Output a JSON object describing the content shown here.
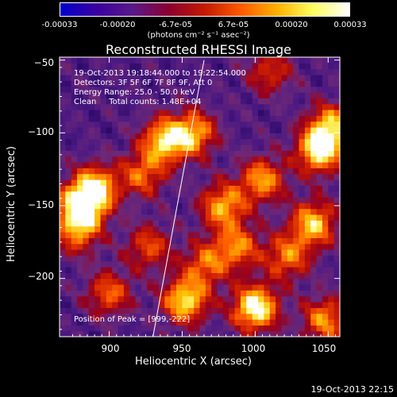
{
  "colorbar": {
    "ticks": [
      "-0.00033",
      "-0.00020",
      "-6.7e-05",
      "6.7e-05",
      "0.00020",
      "0.00033"
    ],
    "units": "(photons cm⁻² s⁻¹ asec⁻²)",
    "colors": [
      "#0000cc",
      "#3a00a0",
      "#5a1a8a",
      "#8a0030",
      "#c41a00",
      "#ff5a00",
      "#ffb000",
      "#ffff60",
      "#ffffff"
    ]
  },
  "chart_data": {
    "type": "heatmap",
    "title": "Reconstructed RHESSI Image",
    "xlabel": "Heliocentric X (arcsec)",
    "ylabel": "Heliocentric Y (arcsec)",
    "xlim": [
      866,
      1058
    ],
    "ylim": [
      -240,
      -48
    ],
    "xticks": [
      900,
      950,
      1000,
      1050
    ],
    "yticks": [
      -50,
      -100,
      -150,
      -200
    ],
    "xtick_labels": [
      "900",
      "950",
      "1000",
      "1050"
    ],
    "ytick_labels": [
      "−50",
      "−100",
      "−150",
      "−200"
    ],
    "limb_line": [
      [
        930,
        -240
      ],
      [
        965,
        -50
      ]
    ],
    "peak": [
      999,
      -222
    ],
    "bright_regions": [
      {
        "x": 881,
        "y": -150,
        "level": 0.95
      },
      {
        "x": 891,
        "y": -137,
        "level": 0.75
      },
      {
        "x": 878,
        "y": -168,
        "level": 0.55
      },
      {
        "x": 938,
        "y": -105,
        "level": 0.8
      },
      {
        "x": 958,
        "y": -100,
        "level": 0.7
      },
      {
        "x": 923,
        "y": -128,
        "level": 0.55
      },
      {
        "x": 978,
        "y": -150,
        "level": 0.72
      },
      {
        "x": 1005,
        "y": -132,
        "level": 0.68
      },
      {
        "x": 988,
        "y": -178,
        "level": 0.6
      },
      {
        "x": 1044,
        "y": -112,
        "level": 0.9
      },
      {
        "x": 1052,
        "y": -95,
        "level": 0.7
      },
      {
        "x": 1040,
        "y": -162,
        "level": 0.78
      },
      {
        "x": 1022,
        "y": -185,
        "level": 0.6
      },
      {
        "x": 1000,
        "y": -220,
        "level": 1.0
      },
      {
        "x": 952,
        "y": -215,
        "level": 0.85
      },
      {
        "x": 966,
        "y": -190,
        "level": 0.55
      },
      {
        "x": 900,
        "y": -210,
        "level": 0.55
      },
      {
        "x": 1048,
        "y": -228,
        "level": 0.65
      },
      {
        "x": 927,
        "y": -178,
        "level": 0.5
      },
      {
        "x": 1010,
        "y": -58,
        "level": 0.45
      }
    ]
  },
  "info": {
    "line1": "19-Oct-2013 19:18:44.000 to 19:22:54.000",
    "line2": "Detectors: 3F 5F 6F 7F 8F 9F, Att 0",
    "line3": "Energy Range: 25.0 - 50.0 keV",
    "line4": "Clean     Total counts: 1.48E+04",
    "peak_label": "Position of Peak = [999,-222]"
  },
  "footer": "19-Oct-2013 22:15"
}
